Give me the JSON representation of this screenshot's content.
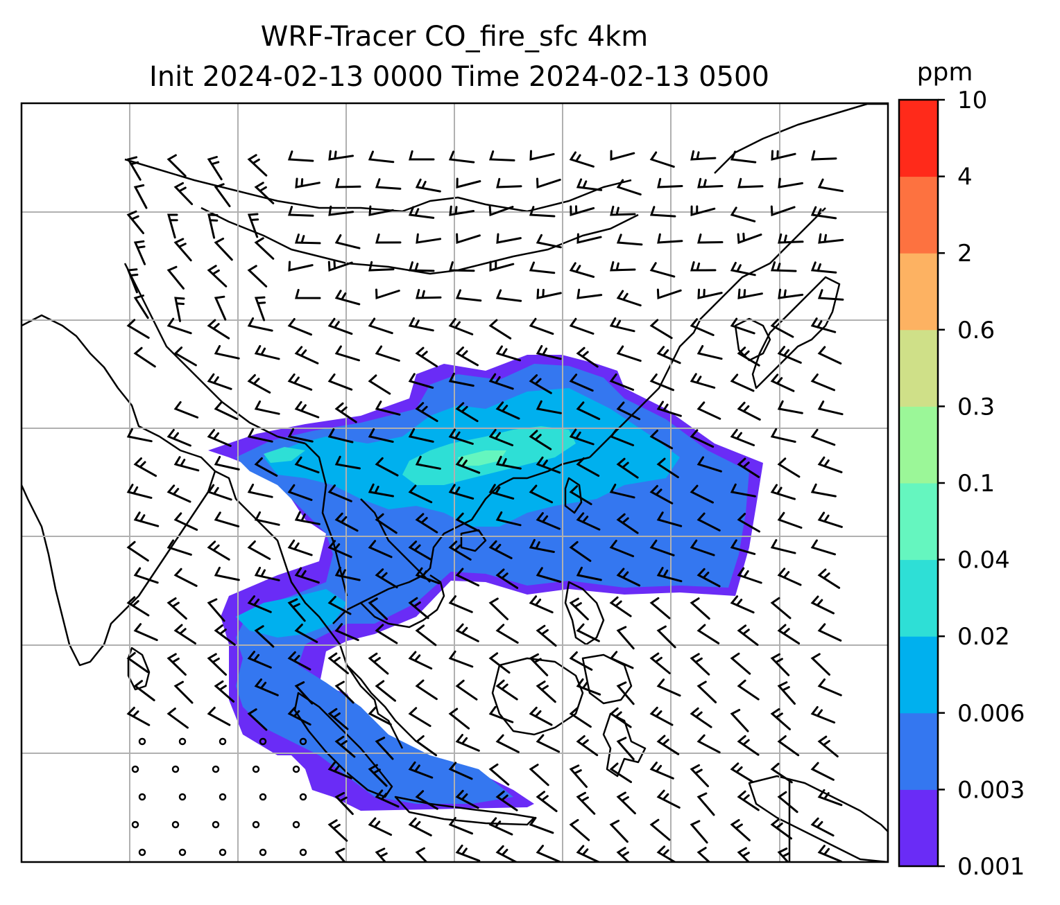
{
  "title": {
    "line1": "WRF-Tracer CO_fire_sfc 4km",
    "line2": "Init 2024-02-13 0000 Time 2024-02-13 0500"
  },
  "colorbar": {
    "unit": "ppm",
    "levels": [
      "0.001",
      "0.003",
      "0.006",
      "0.02",
      "0.04",
      "0.1",
      "0.3",
      "0.6",
      "2",
      "4",
      "10"
    ],
    "colors": [
      "#6a2cf6",
      "#3477f0",
      "#00b0ee",
      "#2edfd6",
      "#65f6bf",
      "#9bf798",
      "#cfe088",
      "#fdb262",
      "#fd7240",
      "#ff2a1a"
    ]
  },
  "map": {
    "gridlines": "on",
    "gridline_color": "#b0b0b0",
    "coastline_color": "#000000",
    "field": "CO_fire_sfc",
    "plume_region": "Southeast Asia / South China Sea",
    "wind_barbs": "on"
  }
}
